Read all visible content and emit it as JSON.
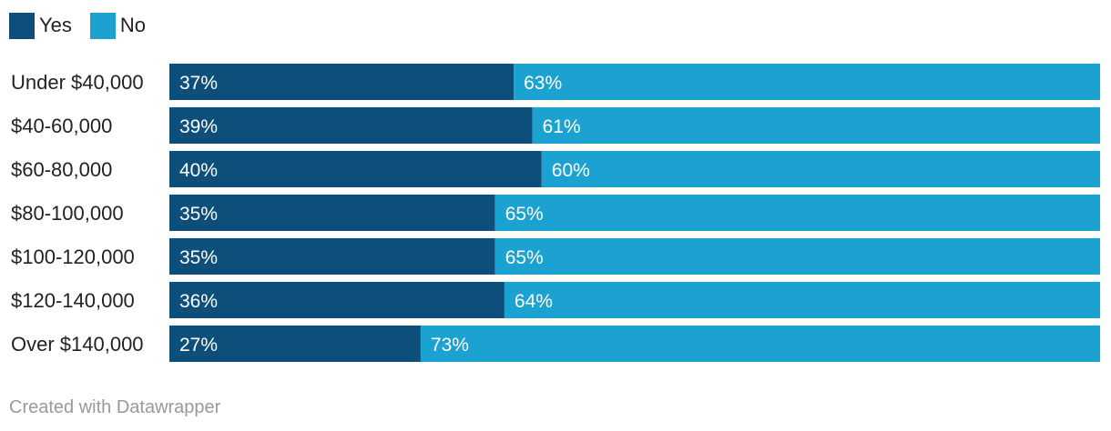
{
  "chart_data": {
    "type": "bar",
    "orientation": "horizontal",
    "stacked": true,
    "categories": [
      "Under $40,000",
      "$40-60,000",
      "$60-80,000",
      "$80-100,000",
      "$100-120,000",
      "$120-140,000",
      "Over $140,000"
    ],
    "series": [
      {
        "name": "Yes",
        "color": "#0d4f7a",
        "values": [
          37,
          39,
          40,
          35,
          35,
          36,
          27
        ],
        "labels": [
          "37%",
          "39%",
          "40%",
          "35%",
          "35%",
          "36%",
          "27%"
        ]
      },
      {
        "name": "No",
        "color": "#1ba2d0",
        "values": [
          63,
          61,
          60,
          65,
          65,
          64,
          73
        ],
        "labels": [
          "63%",
          "61%",
          "60%",
          "65%",
          "65%",
          "64%",
          "73%"
        ]
      }
    ],
    "xlim": [
      0,
      100
    ],
    "legend_position": "top-left",
    "grid": false
  },
  "footer": {
    "credit": "Created with Datawrapper"
  }
}
